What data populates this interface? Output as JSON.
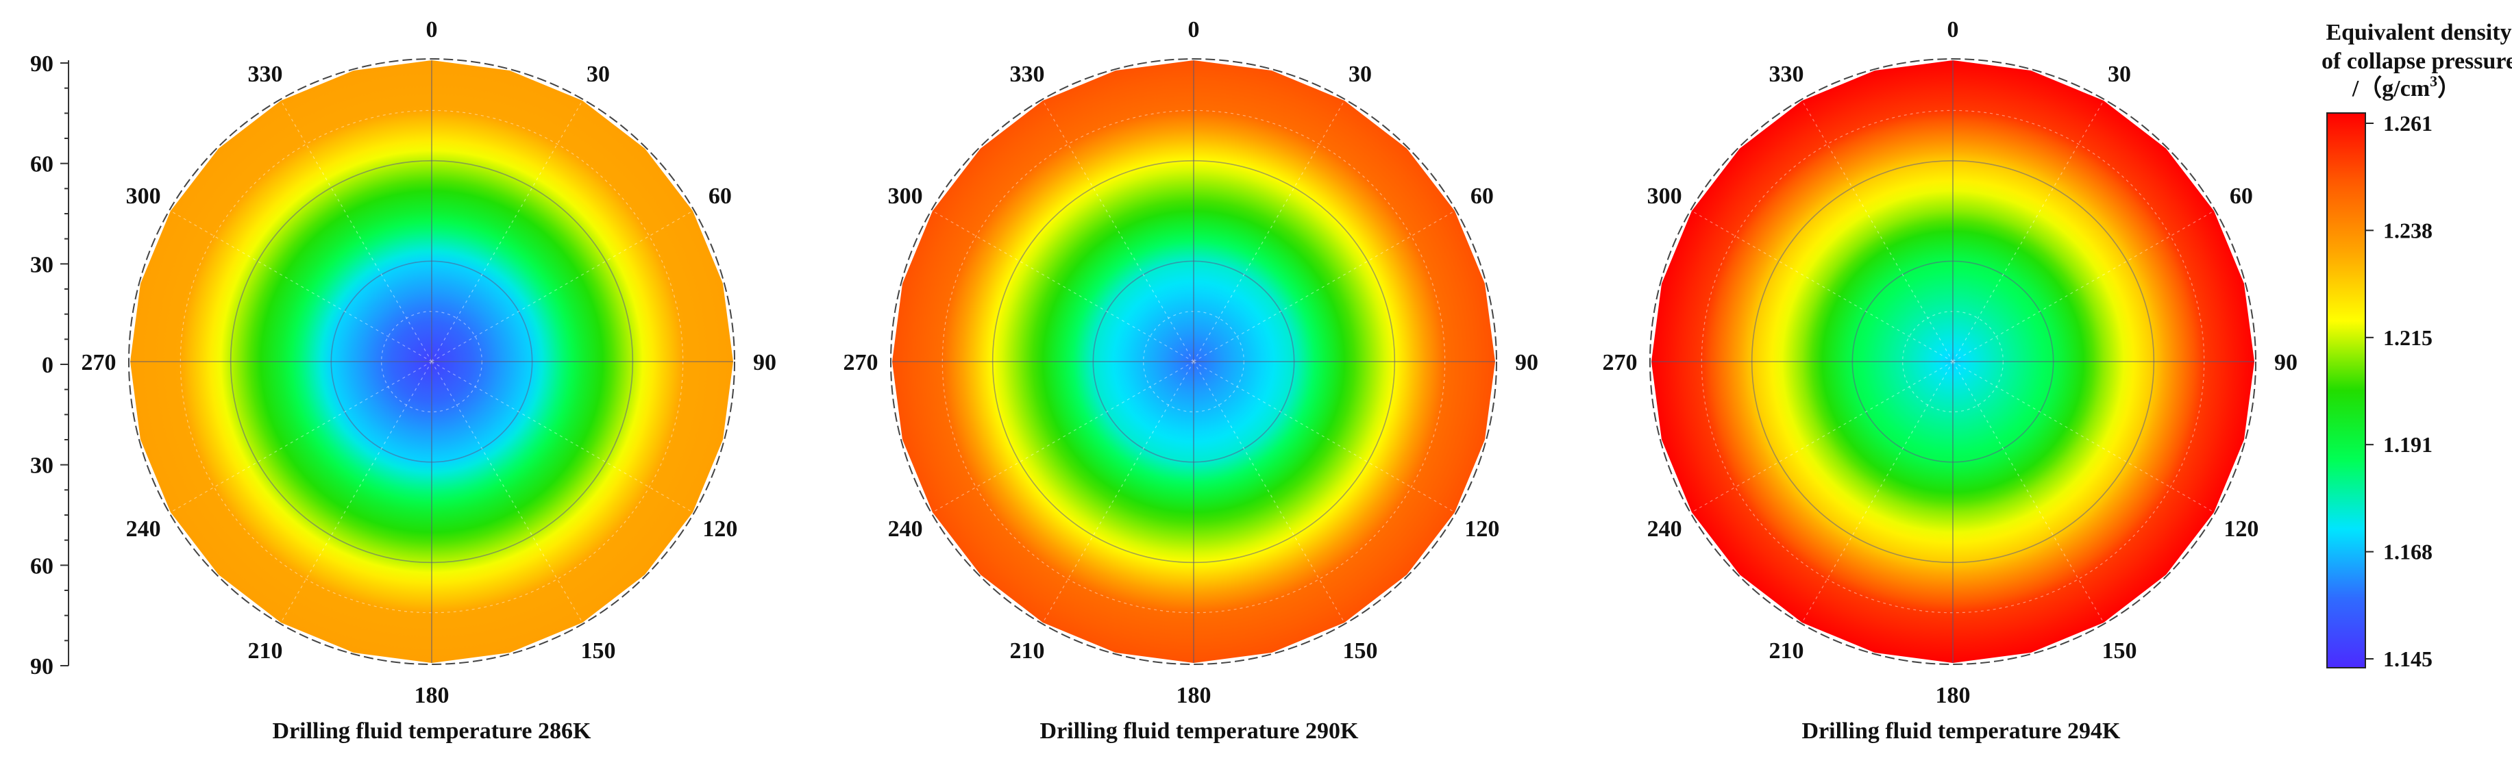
{
  "chart_data": [
    {
      "type": "heatmap",
      "subtype": "polar",
      "title": "Drilling fluid temperature 286K",
      "angle_ticks": [
        "0",
        "30",
        "60",
        "90",
        "120",
        "150",
        "180",
        "210",
        "240",
        "270",
        "300",
        "330"
      ],
      "radial_ticks": [
        "90",
        "60",
        "30",
        "0",
        "30",
        "60",
        "90"
      ],
      "radial_range": [
        0,
        90
      ],
      "profile": {
        "r": [
          0,
          30,
          45,
          60,
          75,
          90
        ],
        "value": [
          1.15,
          1.172,
          1.195,
          1.213,
          1.232,
          1.233
        ]
      }
    },
    {
      "type": "heatmap",
      "subtype": "polar",
      "title": "Drilling fluid temperature 290K",
      "angle_ticks": [
        "0",
        "30",
        "60",
        "90",
        "120",
        "150",
        "180",
        "210",
        "240",
        "270",
        "300",
        "330"
      ],
      "radial_range": [
        0,
        90
      ],
      "profile": {
        "r": [
          0,
          30,
          45,
          60,
          75,
          90
        ],
        "value": [
          1.16,
          1.178,
          1.202,
          1.218,
          1.243,
          1.248
        ]
      }
    },
    {
      "type": "heatmap",
      "subtype": "polar",
      "title": "Drilling fluid temperature 294K",
      "angle_ticks": [
        "0",
        "30",
        "60",
        "90",
        "120",
        "150",
        "180",
        "210",
        "240",
        "270",
        "300",
        "330"
      ],
      "radial_range": [
        0,
        90
      ],
      "profile": {
        "r": [
          0,
          30,
          45,
          60,
          75,
          90
        ],
        "value": [
          1.172,
          1.19,
          1.21,
          1.226,
          1.252,
          1.261
        ]
      }
    }
  ],
  "colorbar": {
    "title_lines": [
      "Equivalent density",
      "of collapse pressure",
      "/（g/cm"
    ],
    "title_sup": "3",
    "title_end": "）",
    "ticks": [
      "1.261",
      "1.238",
      "1.215",
      "1.191",
      "1.168",
      "1.145"
    ],
    "range": [
      1.145,
      1.261
    ],
    "colors": [
      "#4b2bff",
      "#2f6bff",
      "#00e5ff",
      "#00ff55",
      "#22dd00",
      "#ffff00",
      "#ffa500",
      "#ff5a00",
      "#ff0000"
    ]
  }
}
